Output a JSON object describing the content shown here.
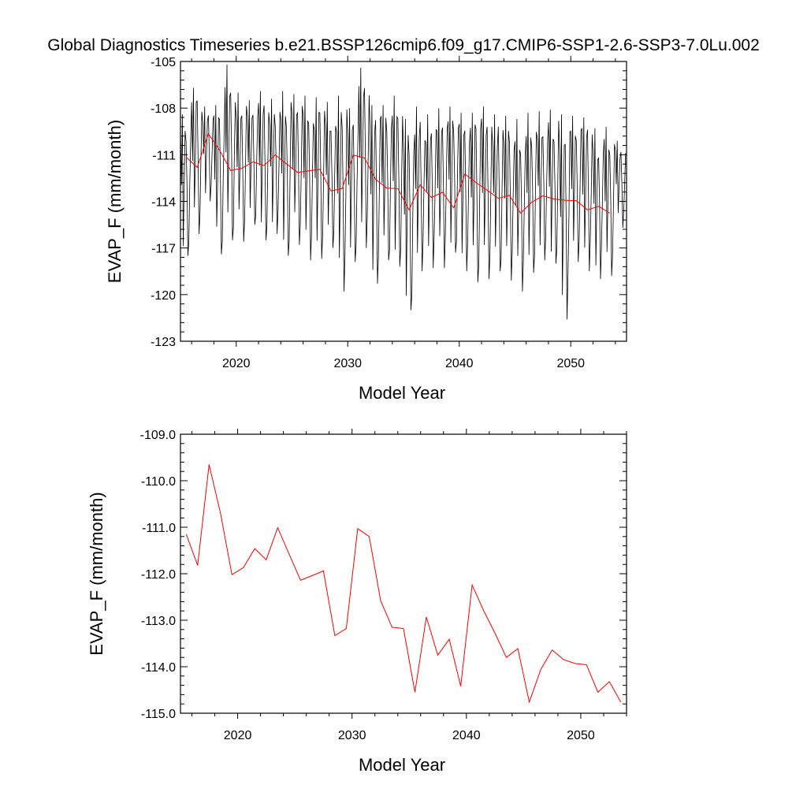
{
  "title": "Global Diagnostics Timeseries b.e21.BSSP126cmip6.f09_g17.CMIP6-SSP1-2.6-SSP3-7.0Lu.002",
  "colors": {
    "monthly": "#000000",
    "annual": "#ff0000",
    "frame": "#000000"
  },
  "chart_data": [
    {
      "type": "line",
      "xlabel": "Model Year",
      "ylabel": "EVAP_F (mm/month)",
      "xlim": [
        2015,
        2055
      ],
      "ylim": [
        -123,
        -105
      ],
      "xticks": [
        2020,
        2030,
        2040,
        2050
      ],
      "yticks": [
        -123,
        -120,
        -117,
        -114,
        -111,
        -108,
        -105
      ],
      "ytick_labels": [
        "-123",
        "-120",
        "-117",
        "-114",
        "-111",
        "-108",
        "-105"
      ],
      "series": [
        {
          "color": "#000000",
          "description_shape": "monthly seasonal oscillation",
          "monthly": {
            "start_year": 2015.0,
            "step": 0.0833333,
            "annual_maxima": [
              -108.4,
              -106.7,
              -107.9,
              -107.8,
              -105.2,
              -107.0,
              -107.5,
              -106.9,
              -107.4,
              -106.9,
              -107.1,
              -107.2,
              -107.3,
              -107.6,
              -107.2,
              -108.0,
              -105.4,
              -107.8,
              -107.8,
              -107.2,
              -108.7,
              -107.9,
              -108.4,
              -108.0,
              -107.9,
              -108.3,
              -108.3,
              -107.9,
              -108.4,
              -108.5,
              -108.7,
              -108.3,
              -108.2,
              -108.1,
              -108.4,
              -108.5,
              -108.6,
              -109.3,
              -109.2,
              -110.1
            ],
            "annual_minima": [
              -117.5,
              -116.1,
              -114.0,
              -117.4,
              -116.5,
              -116.6,
              -115.5,
              -116.5,
              -116.1,
              -117.5,
              -116.8,
              -117.8,
              -117.7,
              -117.0,
              -119.8,
              -117.9,
              -117.0,
              -119.3,
              -117.8,
              -118.2,
              -121.0,
              -118.5,
              -118.3,
              -118.3,
              -117.3,
              -118.5,
              -119.2,
              -119.0,
              -118.5,
              -119.1,
              -119.8,
              -118.6,
              -117.8,
              -118.0,
              -121.6,
              -117.9,
              -118.5,
              -119.0,
              -118.8,
              -115.7
            ]
          }
        },
        {
          "color": "#ff0000",
          "x": [
            2015.5,
            2016.5,
            2017.5,
            2018.5,
            2019.5,
            2020.5,
            2021.5,
            2022.5,
            2023.5,
            2024.5,
            2025.5,
            2026.5,
            2027.5,
            2028.5,
            2029.5,
            2030.5,
            2031.5,
            2032.5,
            2033.5,
            2034.5,
            2035.5,
            2036.5,
            2037.5,
            2038.5,
            2039.5,
            2040.5,
            2041.5,
            2042.5,
            2043.5,
            2044.5,
            2045.5,
            2046.5,
            2047.5,
            2048.5,
            2049.5,
            2050.5,
            2051.5,
            2052.5,
            2053.5
          ],
          "values": [
            -111.15,
            -111.82,
            -109.65,
            -110.7,
            -112.02,
            -111.87,
            -111.46,
            -111.7,
            -111.01,
            -111.58,
            -112.14,
            -112.04,
            -111.94,
            -113.33,
            -113.18,
            -111.03,
            -111.2,
            -112.58,
            -113.15,
            -113.18,
            -114.55,
            -112.93,
            -113.75,
            -113.41,
            -114.42,
            -112.24,
            -112.79,
            -113.28,
            -113.8,
            -113.61,
            -114.76,
            -114.06,
            -113.64,
            -113.85,
            -113.93,
            -113.96,
            -114.55,
            -114.32,
            -114.76
          ]
        }
      ]
    },
    {
      "type": "line",
      "xlabel": "Model Year",
      "ylabel": "EVAP_F (mm/month)",
      "xlim": [
        2015,
        2054
      ],
      "ylim": [
        -115,
        -109
      ],
      "xticks": [
        2020,
        2030,
        2040,
        2050
      ],
      "yticks": [
        -115,
        -114,
        -113,
        -112,
        -111,
        -110,
        -109
      ],
      "ytick_labels": [
        "-115.0",
        "-114.0",
        "-113.0",
        "-112.0",
        "-111.0",
        "-110.0",
        "-109.0"
      ],
      "series": [
        {
          "color": "#ff0000",
          "x": [
            2015.5,
            2016.5,
            2017.5,
            2018.5,
            2019.5,
            2020.5,
            2021.5,
            2022.5,
            2023.5,
            2024.5,
            2025.5,
            2026.5,
            2027.5,
            2028.5,
            2029.5,
            2030.5,
            2031.5,
            2032.5,
            2033.5,
            2034.5,
            2035.5,
            2036.5,
            2037.5,
            2038.5,
            2039.5,
            2040.5,
            2041.5,
            2042.5,
            2043.5,
            2044.5,
            2045.5,
            2046.5,
            2047.5,
            2048.5,
            2049.5,
            2050.5,
            2051.5,
            2052.5,
            2053.5
          ],
          "values": [
            -111.15,
            -111.82,
            -109.65,
            -110.7,
            -112.02,
            -111.87,
            -111.46,
            -111.7,
            -111.01,
            -111.58,
            -112.14,
            -112.04,
            -111.94,
            -113.33,
            -113.18,
            -111.03,
            -111.2,
            -112.58,
            -113.15,
            -113.18,
            -114.55,
            -112.93,
            -113.75,
            -113.41,
            -114.42,
            -112.24,
            -112.79,
            -113.28,
            -113.8,
            -113.61,
            -114.76,
            -114.06,
            -113.64,
            -113.85,
            -113.93,
            -113.96,
            -114.55,
            -114.32,
            -114.76
          ]
        }
      ]
    }
  ]
}
